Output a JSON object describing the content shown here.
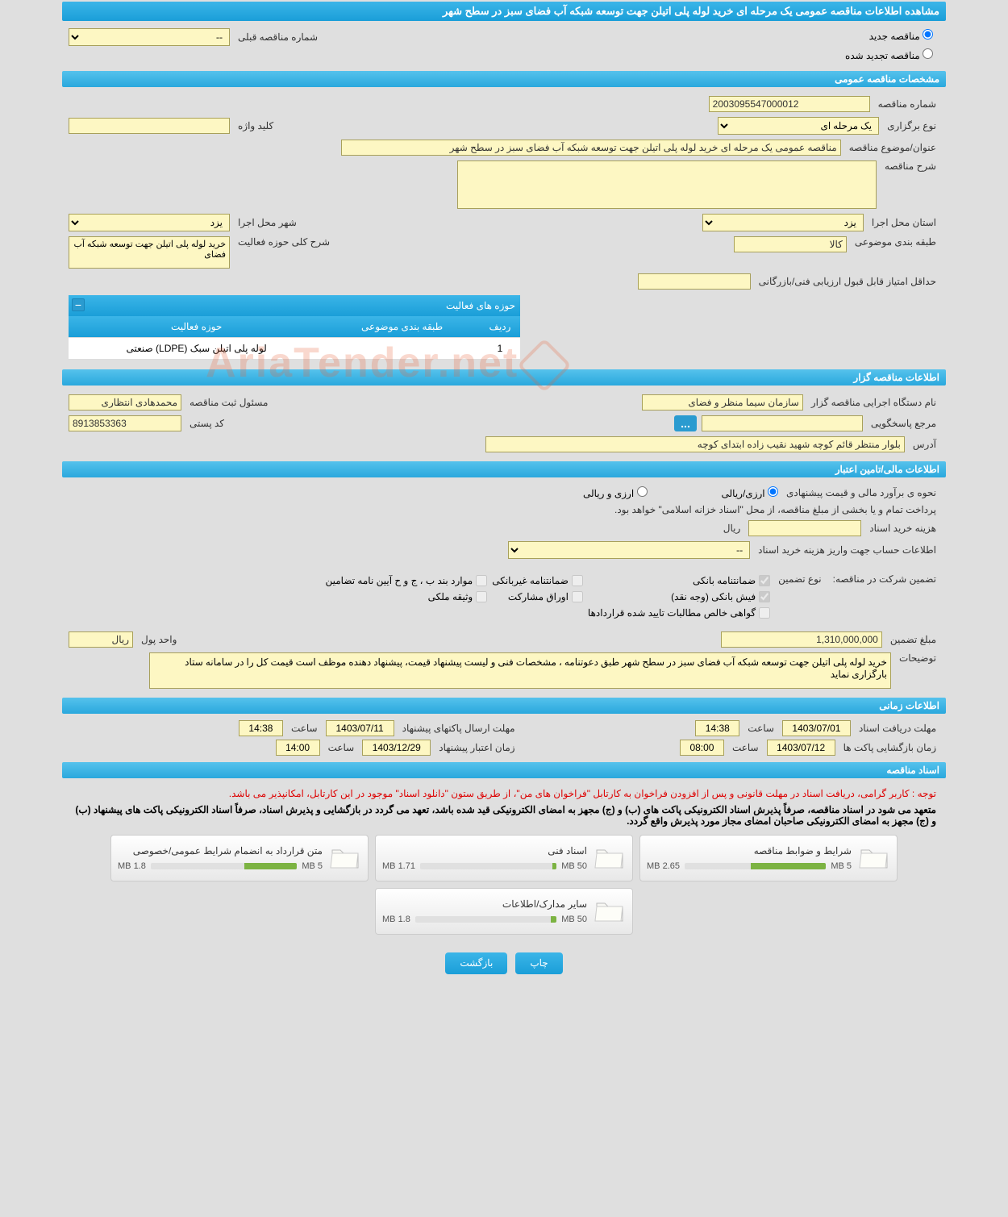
{
  "page_title": "مشاهده اطلاعات مناقصه عمومی یک مرحله ای خرید لوله پلی اتیلن جهت توسعه شبکه آب فضای سبز در سطح شهر",
  "radio": {
    "new_tender": "مناقصه جدید",
    "renewed_tender": "مناقصه تجدید شده",
    "prev_tender_label": "شماره مناقصه قبلی",
    "prev_tender_placeholder": "--"
  },
  "sections": {
    "general": "مشخصات مناقصه عمومی",
    "organizer": "اطلاعات مناقصه گزار",
    "financial": "اطلاعات مالی/تامین اعتبار",
    "timing": "اطلاعات زمانی",
    "documents": "اسناد مناقصه"
  },
  "general": {
    "tender_no_label": "شماره مناقصه",
    "tender_no": "2003095547000012",
    "type_label": "نوع برگزاری",
    "type": "یک مرحله ای",
    "keyword_label": "کلید واژه",
    "keyword": "",
    "subject_label": "عنوان/موضوع مناقصه",
    "subject": "مناقصه عمومی یک مرحله ای خرید لوله پلی اتیلن جهت توسعه شبکه آب فضای سبز در سطح شهر",
    "desc_label": "شرح مناقصه",
    "desc": "",
    "province_label": "استان محل اجرا",
    "province": "یزد",
    "city_label": "شهر محل اجرا",
    "city": "یزد",
    "category_label": "طبقه بندی موضوعی",
    "category": "کالا",
    "activity_desc_label": "شرح کلی حوزه فعالیت",
    "activity_desc": "خرید لوله پلی اتیلن جهت توسعه شبکه آب فضای",
    "min_score_label": "حداقل امتیاز قابل قبول ارزیابی فنی/بازرگانی",
    "min_score": ""
  },
  "activity_table": {
    "title": "حوزه های فعالیت",
    "col_row": "ردیف",
    "col_category": "طبقه بندی موضوعی",
    "col_activity": "حوزه فعالیت",
    "rows": [
      {
        "idx": "1",
        "category": "",
        "activity": "لوله پلی اتیلن سبک (LDPE) صنعتی"
      }
    ]
  },
  "organizer": {
    "agency_label": "نام دستگاه اجرایی مناقصه گزار",
    "agency": "سازمان سیما منظر و فضای",
    "registrar_label": "مسئول ثبت مناقصه",
    "registrar": "محمدهادی انتظاری",
    "contact_label": "مرجع پاسخگویی",
    "contact": "",
    "postal_label": "کد پستی",
    "postal": "8913853363",
    "address_label": "آدرس",
    "address": "بلوار منتظر قائم کوچه شهید نقیب زاده ابتدای کوچه"
  },
  "financial": {
    "estimate_label": "نحوه ی برآورد مالی و قیمت پیشنهادی",
    "opt_rial": "ارزی/ریالی",
    "opt_currency": "ارزی و ریالی",
    "treasury_note": "پرداخت تمام و یا بخشی از مبلغ مناقصه، از محل \"اسناد خزانه اسلامی\" خواهد بود.",
    "doc_cost_label": "هزینه خرید اسناد",
    "doc_cost": "",
    "rial_label": "ریال",
    "account_label": "اطلاعات حساب جهت واریز هزینه خرید اسناد",
    "account_placeholder": "--",
    "guarantee_title": "تضمین شرکت در مناقصه:",
    "guarantee_type_label": "نوع تضمین",
    "chk_bank": "ضمانتنامه بانکی",
    "chk_nonbank": "ضمانتنامه غیربانکی",
    "chk_articles": "موارد بند ب ، ج و ح آیین نامه تضامین",
    "chk_cash": "فیش بانکی (وجه نقد)",
    "chk_bonds": "اوراق مشارکت",
    "chk_property": "وثیقه ملکی",
    "chk_receivables": "گواهی خالص مطالبات تایید شده قراردادها",
    "amount_label": "مبلغ تضمین",
    "amount": "1,310,000,000",
    "unit_label": "واحد پول",
    "unit": "ریال",
    "notes_label": "توضیحات",
    "notes": "خرید لوله پلی اتیلن جهت توسعه شبکه آب فضای سبز در سطح شهر طبق دعوتنامه ، مشخصات فنی و لیست پیشنهاد قیمت، پیشنهاد دهنده موظف است قیمت کل را در سامانه ستاد بارگزاری نماید"
  },
  "timing": {
    "doc_receive_label": "مهلت دریافت اسناد",
    "doc_receive_date": "1403/07/01",
    "doc_receive_time": "14:38",
    "bid_send_label": "مهلت ارسال پاکتهای پیشنهاد",
    "bid_send_date": "1403/07/11",
    "bid_send_time": "14:38",
    "open_label": "زمان بازگشایی پاکت ها",
    "open_date": "1403/07/12",
    "open_time": "08:00",
    "validity_label": "زمان اعتبار پیشنهاد",
    "validity_date": "1403/12/29",
    "validity_time": "14:00",
    "time_word": "ساعت"
  },
  "documents": {
    "note1": "توجه : کاربر گرامی، دریافت اسناد در مهلت قانونی و پس از افزودن فراخوان به کارتابل \"فراخوان های من\"، از طریق ستون \"دانلود اسناد\" موجود در این کارتابل، امکانپذیر می باشد.",
    "note2": "متعهد می شود در اسناد مناقصه، صرفاً پذیرش اسناد الکترونیکی پاکت های (ب) و (ج) مجهز به امضای الکترونیکی قید شده باشد، تعهد می گردد در بازگشایی و پذیرش اسناد، صرفاً اسناد الکترونیکی پاکت های پیشنهاد (ب) و (ج) مجهز به امضای الکترونیکی صاحبان امضای مجاز مورد پذیرش واقع گردد.",
    "items": [
      {
        "title": "شرایط و ضوابط مناقصه",
        "size": "2.65 MB",
        "max": "5 MB",
        "pct": 53
      },
      {
        "title": "اسناد فنی",
        "size": "1.71 MB",
        "max": "50 MB",
        "pct": 3
      },
      {
        "title": "متن قرارداد به انضمام شرایط عمومی/خصوصی",
        "size": "1.8 MB",
        "max": "5 MB",
        "pct": 36
      },
      {
        "title": "سایر مدارک/اطلاعات",
        "size": "1.8 MB",
        "max": "50 MB",
        "pct": 4
      }
    ]
  },
  "buttons": {
    "print": "چاپ",
    "back": "بازگشت"
  },
  "watermark": "AriaTender.net"
}
